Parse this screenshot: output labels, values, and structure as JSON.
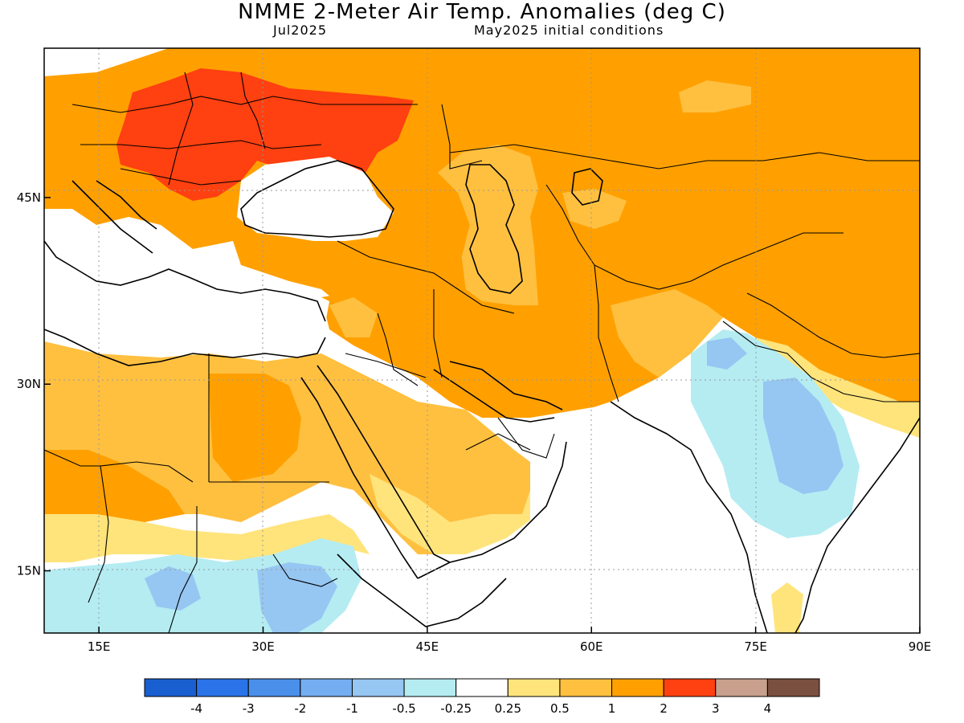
{
  "title": "NMME 2-Meter Air Temp. Anomalies (deg C)",
  "subtitle_left": "Jul2025",
  "subtitle_right": "May2025 initial conditions",
  "map": {
    "lon_range": [
      10,
      90
    ],
    "lat_range": [
      10,
      57
    ],
    "lat_ticks": [
      {
        "value": 15,
        "label": "15N"
      },
      {
        "value": 30,
        "label": "30N"
      },
      {
        "value": 45,
        "label": "45N"
      }
    ],
    "lon_ticks": [
      {
        "value": 15,
        "label": "15E"
      },
      {
        "value": 30,
        "label": "30E"
      },
      {
        "value": 45,
        "label": "45E"
      },
      {
        "value": 60,
        "label": "60E"
      },
      {
        "value": 75,
        "label": "75E"
      },
      {
        "value": 90,
        "label": "90E"
      }
    ]
  },
  "colorbar": {
    "colors": [
      "#1a5fd0",
      "#2a73e8",
      "#4a90ea",
      "#74aef0",
      "#96c6f2",
      "#b4ecf2",
      "#ffffff",
      "#ffe47c",
      "#ffc040",
      "#ffa000",
      "#ff4010",
      "#c8a08c",
      "#7a5040"
    ],
    "labels": [
      "-4",
      "-3",
      "-2",
      "-1",
      "-0.5",
      "-0.25",
      "0.25",
      "0.5",
      "1",
      "2",
      "3",
      "4"
    ]
  },
  "colors": {
    "very_warm": "#ff4010",
    "warm": "#ffa000",
    "mild_warm": "#ffc040",
    "slight_warm": "#ffe47c",
    "neutral": "#ffffff",
    "slight_cool": "#b4ecf2",
    "mild_cool": "#96c6f2"
  }
}
